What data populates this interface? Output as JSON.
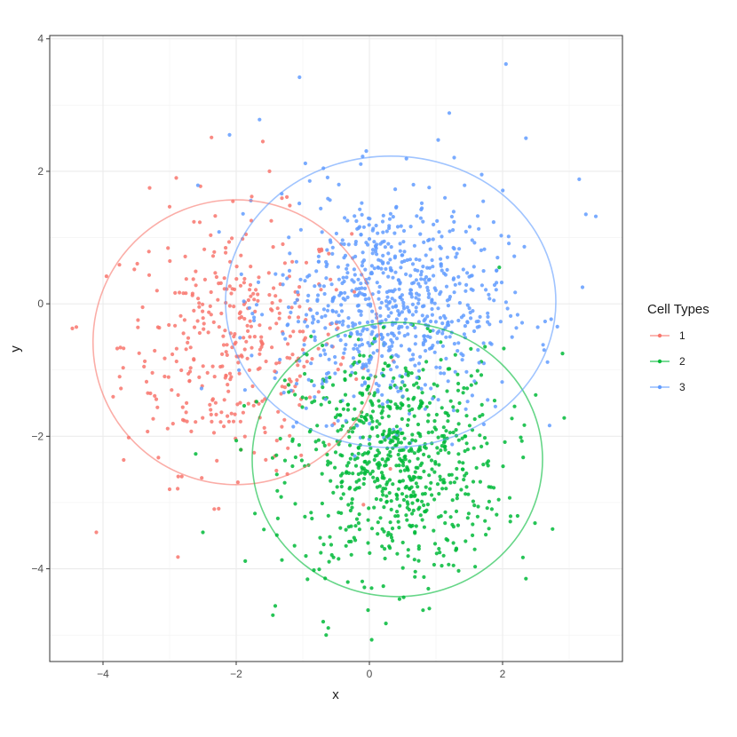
{
  "chart_data": {
    "type": "scatter",
    "xlabel": "x",
    "ylabel": "y",
    "xlim": [
      -4.8,
      3.8
    ],
    "ylim": [
      -5.4,
      4.05
    ],
    "x_ticks": [
      -4,
      -2,
      0,
      2
    ],
    "y_ticks": [
      -4,
      -2,
      0,
      2,
      4
    ],
    "x_minor_ticks": [
      -5,
      -3,
      -1,
      1,
      3
    ],
    "y_minor_ticks": [
      -5,
      -3,
      -1,
      1,
      3
    ],
    "grid": true,
    "legend": {
      "title": "Cell Types",
      "placement": "right"
    },
    "series": [
      {
        "name": "1",
        "color": "#F8766D",
        "center": [
          -2.0,
          -0.6
        ],
        "spread": [
          0.85,
          0.95
        ],
        "count": 380,
        "ellipse": {
          "cx": -2.0,
          "cy": -0.58,
          "rx": 2.15,
          "ry": 2.15
        },
        "extra_points": [
          [
            -4.1,
            -3.45
          ],
          [
            -1.6,
            2.45
          ],
          [
            -1.5,
            2.0
          ],
          [
            -3.3,
            1.75
          ],
          [
            -2.9,
            1.9
          ],
          [
            -4.4,
            -0.35
          ],
          [
            -3.0,
            -2.8
          ],
          [
            -1.3,
            0.9
          ]
        ]
      },
      {
        "name": "2",
        "color": "#00BA38",
        "center": [
          0.4,
          -2.4
        ],
        "spread": [
          0.8,
          0.85
        ],
        "count": 760,
        "ellipse": {
          "cx": 0.42,
          "cy": -2.35,
          "rx": 2.18,
          "ry": 2.07
        },
        "extra_points": [
          [
            -0.65,
            -5.0
          ],
          [
            -1.45,
            -4.7
          ],
          [
            0.9,
            -4.6
          ],
          [
            2.75,
            -3.4
          ],
          [
            2.9,
            -0.75
          ],
          [
            2.35,
            -4.15
          ],
          [
            -2.5,
            -3.45
          ],
          [
            1.95,
            0.55
          ]
        ]
      },
      {
        "name": "3",
        "color": "#619CFF",
        "center": [
          0.3,
          0.0
        ],
        "spread": [
          0.85,
          0.85
        ],
        "count": 780,
        "ellipse": {
          "cx": 0.32,
          "cy": 0.03,
          "rx": 2.48,
          "ry": 2.2
        },
        "extra_points": [
          [
            2.05,
            3.62
          ],
          [
            -1.05,
            3.42
          ],
          [
            3.15,
            1.88
          ],
          [
            3.4,
            1.32
          ],
          [
            3.25,
            1.35
          ],
          [
            2.35,
            2.5
          ],
          [
            -2.1,
            2.55
          ],
          [
            -1.65,
            2.78
          ],
          [
            1.2,
            2.88
          ],
          [
            3.2,
            0.25
          ]
        ]
      }
    ]
  }
}
